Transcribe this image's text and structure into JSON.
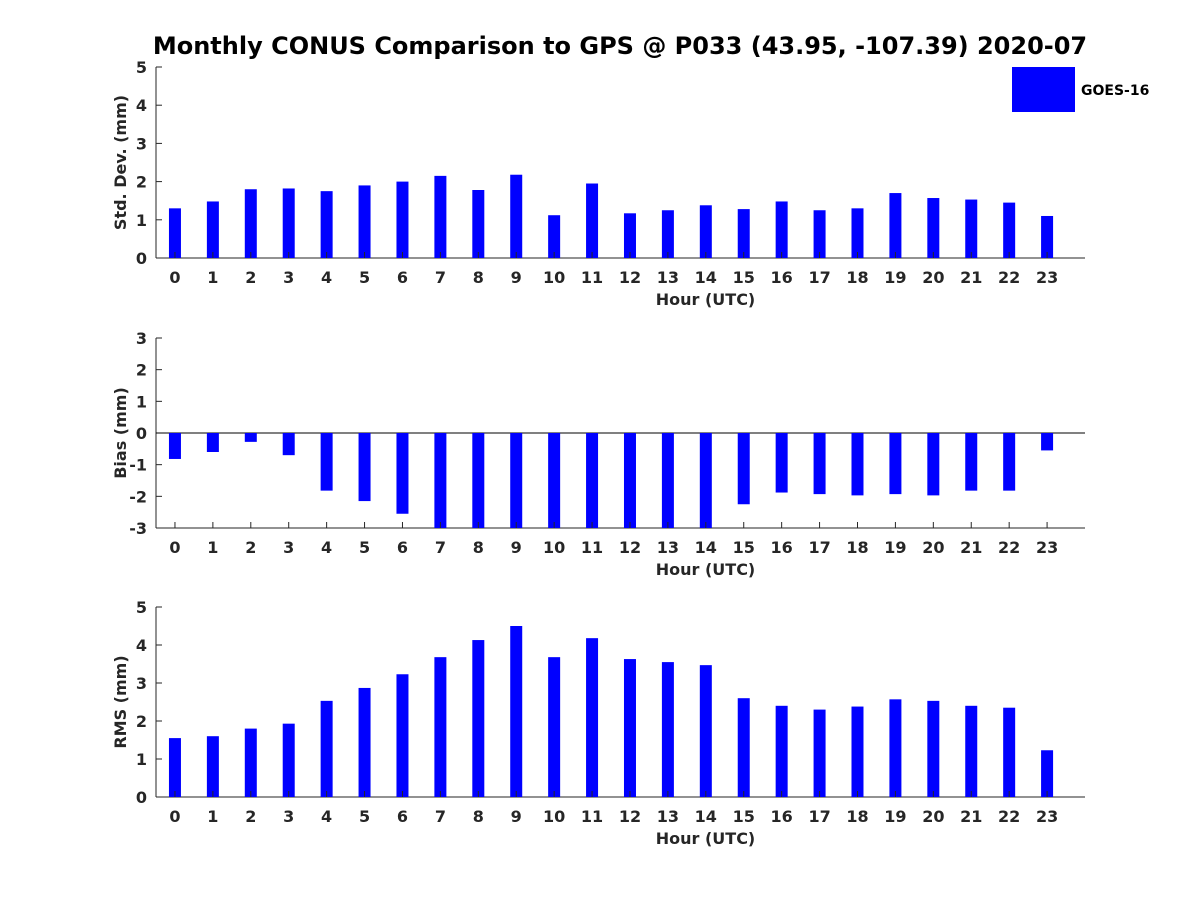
{
  "title": "Monthly CONUS Comparison to GPS @ P033 (43.95, -107.39) 2020-07",
  "legend": {
    "label": "GOES-16",
    "color": "#0000ff",
    "placement": "top-right"
  },
  "chart_data": [
    {
      "type": "bar",
      "xlabel": "Hour (UTC)",
      "ylabel": "Std. Dev. (mm)",
      "ylim": [
        0,
        5
      ],
      "yticks": [
        0,
        1,
        2,
        3,
        4,
        5
      ],
      "categories": [
        "0",
        "1",
        "2",
        "3",
        "4",
        "5",
        "6",
        "7",
        "8",
        "9",
        "10",
        "11",
        "12",
        "13",
        "14",
        "15",
        "16",
        "17",
        "18",
        "19",
        "20",
        "21",
        "22",
        "23"
      ],
      "series": [
        {
          "name": "GOES-16",
          "color": "#0000ff",
          "values": [
            1.3,
            1.48,
            1.8,
            1.82,
            1.75,
            1.9,
            2.0,
            2.15,
            1.78,
            2.18,
            1.12,
            1.95,
            1.17,
            1.25,
            1.38,
            1.28,
            1.48,
            1.25,
            1.3,
            1.7,
            1.57,
            1.53,
            1.45,
            1.1
          ]
        }
      ]
    },
    {
      "type": "bar",
      "xlabel": "Hour (UTC)",
      "ylabel": "Bias (mm)",
      "ylim": [
        -3,
        3
      ],
      "yticks": [
        -3,
        -2,
        -1,
        0,
        1,
        2,
        3
      ],
      "categories": [
        "0",
        "1",
        "2",
        "3",
        "4",
        "5",
        "6",
        "7",
        "8",
        "9",
        "10",
        "11",
        "12",
        "13",
        "14",
        "15",
        "16",
        "17",
        "18",
        "19",
        "20",
        "21",
        "22",
        "23"
      ],
      "series": [
        {
          "name": "GOES-16",
          "color": "#0000ff",
          "values": [
            -0.82,
            -0.6,
            -0.28,
            -0.7,
            -1.82,
            -2.15,
            -2.55,
            -3.0,
            -3.0,
            -3.0,
            -3.0,
            -3.0,
            -3.0,
            -3.0,
            -3.0,
            -2.25,
            -1.88,
            -1.93,
            -1.97,
            -1.93,
            -1.97,
            -1.82,
            -1.82,
            -0.55
          ]
        }
      ]
    },
    {
      "type": "bar",
      "xlabel": "Hour (UTC)",
      "ylabel": "RMS (mm)",
      "ylim": [
        0,
        5
      ],
      "yticks": [
        0,
        1,
        2,
        3,
        4,
        5
      ],
      "categories": [
        "0",
        "1",
        "2",
        "3",
        "4",
        "5",
        "6",
        "7",
        "8",
        "9",
        "10",
        "11",
        "12",
        "13",
        "14",
        "15",
        "16",
        "17",
        "18",
        "19",
        "20",
        "21",
        "22",
        "23"
      ],
      "series": [
        {
          "name": "GOES-16",
          "color": "#0000ff",
          "values": [
            1.55,
            1.6,
            1.8,
            1.93,
            2.53,
            2.87,
            3.23,
            3.68,
            4.13,
            4.5,
            3.68,
            4.18,
            3.63,
            3.55,
            3.47,
            2.6,
            2.4,
            2.3,
            2.38,
            2.57,
            2.53,
            2.4,
            2.35,
            1.23
          ]
        }
      ]
    }
  ]
}
